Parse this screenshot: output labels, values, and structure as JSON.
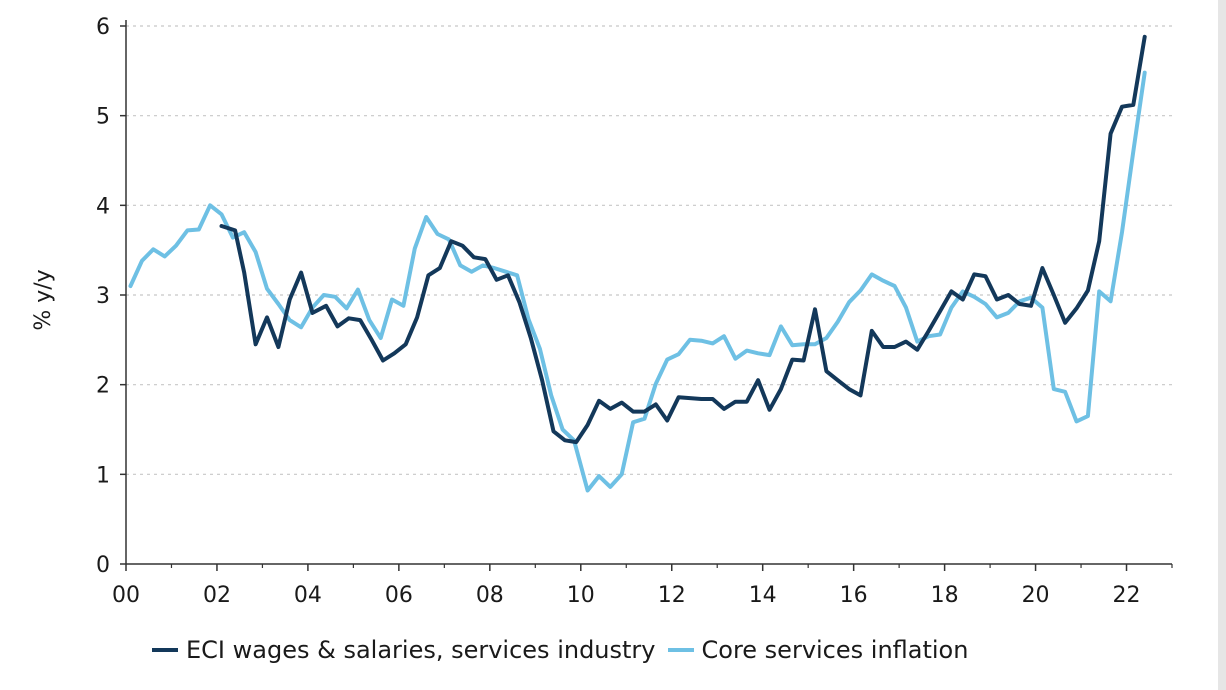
{
  "chart_data": {
    "type": "line",
    "title": "",
    "xlabel": "",
    "ylabel": "% y/y",
    "xlim": [
      2000,
      2023
    ],
    "ylim": [
      0,
      6
    ],
    "yticks": [
      "0",
      "1",
      "2",
      "3",
      "4",
      "5",
      "6"
    ],
    "xticks": [
      "00",
      "02",
      "04",
      "06",
      "08",
      "10",
      "12",
      "14",
      "16",
      "18",
      "20",
      "22"
    ],
    "grid": "horizontal dotted",
    "legend_position": "bottom",
    "series": [
      {
        "name": "ECI wages & salaries, services industry",
        "color": "#13385a",
        "points": [
          [
            2002.1,
            3.77
          ],
          [
            2002.4,
            3.72
          ],
          [
            2002.6,
            3.25
          ],
          [
            2002.85,
            2.45
          ],
          [
            2003.1,
            2.75
          ],
          [
            2003.35,
            2.42
          ],
          [
            2003.6,
            2.95
          ],
          [
            2003.85,
            3.25
          ],
          [
            2004.1,
            2.8
          ],
          [
            2004.4,
            2.88
          ],
          [
            2004.65,
            2.65
          ],
          [
            2004.9,
            2.74
          ],
          [
            2005.15,
            2.72
          ],
          [
            2005.4,
            2.5
          ],
          [
            2005.65,
            2.27
          ],
          [
            2005.9,
            2.35
          ],
          [
            2006.15,
            2.45
          ],
          [
            2006.4,
            2.75
          ],
          [
            2006.65,
            3.22
          ],
          [
            2006.9,
            3.3
          ],
          [
            2007.15,
            3.6
          ],
          [
            2007.4,
            3.55
          ],
          [
            2007.65,
            3.42
          ],
          [
            2007.9,
            3.4
          ],
          [
            2008.15,
            3.17
          ],
          [
            2008.4,
            3.22
          ],
          [
            2008.65,
            2.92
          ],
          [
            2008.9,
            2.52
          ],
          [
            2009.15,
            2.05
          ],
          [
            2009.4,
            1.48
          ],
          [
            2009.65,
            1.38
          ],
          [
            2009.9,
            1.36
          ],
          [
            2010.15,
            1.55
          ],
          [
            2010.4,
            1.82
          ],
          [
            2010.65,
            1.73
          ],
          [
            2010.9,
            1.8
          ],
          [
            2011.15,
            1.7
          ],
          [
            2011.4,
            1.7
          ],
          [
            2011.65,
            1.78
          ],
          [
            2011.9,
            1.6
          ],
          [
            2012.15,
            1.86
          ],
          [
            2012.4,
            1.85
          ],
          [
            2012.65,
            1.84
          ],
          [
            2012.9,
            1.84
          ],
          [
            2013.15,
            1.73
          ],
          [
            2013.4,
            1.81
          ],
          [
            2013.65,
            1.81
          ],
          [
            2013.9,
            2.05
          ],
          [
            2014.15,
            1.72
          ],
          [
            2014.4,
            1.95
          ],
          [
            2014.65,
            2.28
          ],
          [
            2014.9,
            2.27
          ],
          [
            2015.15,
            2.84
          ],
          [
            2015.4,
            2.15
          ],
          [
            2015.65,
            2.05
          ],
          [
            2015.9,
            1.95
          ],
          [
            2016.15,
            1.88
          ],
          [
            2016.4,
            2.6
          ],
          [
            2016.65,
            2.42
          ],
          [
            2016.9,
            2.42
          ],
          [
            2017.15,
            2.48
          ],
          [
            2017.4,
            2.39
          ],
          [
            2017.65,
            2.6
          ],
          [
            2017.9,
            2.82
          ],
          [
            2018.15,
            3.04
          ],
          [
            2018.4,
            2.95
          ],
          [
            2018.65,
            3.23
          ],
          [
            2018.9,
            3.21
          ],
          [
            2019.15,
            2.95
          ],
          [
            2019.4,
            3.0
          ],
          [
            2019.65,
            2.9
          ],
          [
            2019.9,
            2.88
          ],
          [
            2020.15,
            3.3
          ],
          [
            2020.4,
            3.0
          ],
          [
            2020.65,
            2.69
          ],
          [
            2020.9,
            2.85
          ],
          [
            2021.15,
            3.05
          ],
          [
            2021.4,
            3.6
          ],
          [
            2021.65,
            4.8
          ],
          [
            2021.9,
            5.1
          ],
          [
            2022.15,
            5.12
          ],
          [
            2022.4,
            5.88
          ]
        ]
      },
      {
        "name": "Core services inflation",
        "color": "#6ec0e4",
        "points": [
          [
            2000.1,
            3.1
          ],
          [
            2000.35,
            3.38
          ],
          [
            2000.6,
            3.51
          ],
          [
            2000.85,
            3.43
          ],
          [
            2001.1,
            3.55
          ],
          [
            2001.35,
            3.72
          ],
          [
            2001.6,
            3.73
          ],
          [
            2001.85,
            4.0
          ],
          [
            2002.1,
            3.9
          ],
          [
            2002.35,
            3.64
          ],
          [
            2002.6,
            3.7
          ],
          [
            2002.85,
            3.48
          ],
          [
            2003.1,
            3.07
          ],
          [
            2003.35,
            2.9
          ],
          [
            2003.6,
            2.72
          ],
          [
            2003.85,
            2.64
          ],
          [
            2004.1,
            2.86
          ],
          [
            2004.35,
            3.0
          ],
          [
            2004.6,
            2.98
          ],
          [
            2004.85,
            2.85
          ],
          [
            2005.1,
            3.06
          ],
          [
            2005.35,
            2.72
          ],
          [
            2005.6,
            2.52
          ],
          [
            2005.85,
            2.95
          ],
          [
            2006.1,
            2.88
          ],
          [
            2006.35,
            3.52
          ],
          [
            2006.6,
            3.87
          ],
          [
            2006.85,
            3.68
          ],
          [
            2007.1,
            3.62
          ],
          [
            2007.35,
            3.33
          ],
          [
            2007.6,
            3.26
          ],
          [
            2007.85,
            3.33
          ],
          [
            2008.1,
            3.3
          ],
          [
            2008.35,
            3.26
          ],
          [
            2008.6,
            3.22
          ],
          [
            2008.85,
            2.73
          ],
          [
            2009.1,
            2.4
          ],
          [
            2009.35,
            1.88
          ],
          [
            2009.6,
            1.5
          ],
          [
            2009.85,
            1.38
          ],
          [
            2010.15,
            0.82
          ],
          [
            2010.4,
            0.98
          ],
          [
            2010.65,
            0.86
          ],
          [
            2010.9,
            1.0
          ],
          [
            2011.15,
            1.58
          ],
          [
            2011.4,
            1.62
          ],
          [
            2011.65,
            2.01
          ],
          [
            2011.9,
            2.28
          ],
          [
            2012.15,
            2.34
          ],
          [
            2012.4,
            2.5
          ],
          [
            2012.65,
            2.49
          ],
          [
            2012.9,
            2.46
          ],
          [
            2013.15,
            2.54
          ],
          [
            2013.4,
            2.29
          ],
          [
            2013.65,
            2.38
          ],
          [
            2013.9,
            2.35
          ],
          [
            2014.15,
            2.33
          ],
          [
            2014.4,
            2.65
          ],
          [
            2014.65,
            2.44
          ],
          [
            2014.9,
            2.45
          ],
          [
            2015.15,
            2.45
          ],
          [
            2015.4,
            2.52
          ],
          [
            2015.65,
            2.7
          ],
          [
            2015.9,
            2.92
          ],
          [
            2016.15,
            3.05
          ],
          [
            2016.4,
            3.23
          ],
          [
            2016.65,
            3.16
          ],
          [
            2016.9,
            3.1
          ],
          [
            2017.15,
            2.86
          ],
          [
            2017.4,
            2.48
          ],
          [
            2017.65,
            2.54
          ],
          [
            2017.9,
            2.56
          ],
          [
            2018.15,
            2.86
          ],
          [
            2018.4,
            3.04
          ],
          [
            2018.65,
            2.98
          ],
          [
            2018.9,
            2.9
          ],
          [
            2019.15,
            2.75
          ],
          [
            2019.4,
            2.8
          ],
          [
            2019.65,
            2.93
          ],
          [
            2019.9,
            2.97
          ],
          [
            2020.15,
            2.86
          ],
          [
            2020.4,
            1.95
          ],
          [
            2020.65,
            1.92
          ],
          [
            2020.9,
            1.59
          ],
          [
            2021.15,
            1.65
          ],
          [
            2021.4,
            3.04
          ],
          [
            2021.65,
            2.93
          ],
          [
            2021.9,
            3.7
          ],
          [
            2022.15,
            4.6
          ],
          [
            2022.4,
            5.48
          ]
        ]
      }
    ]
  }
}
